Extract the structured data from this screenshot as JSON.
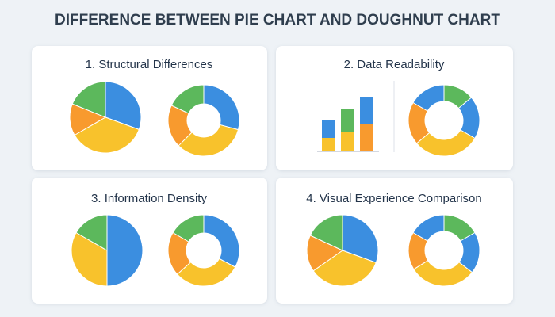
{
  "header": {
    "title": "DIFFERENCE BETWEEN PIE CHART AND DOUGHNUT CHART"
  },
  "panels": [
    {
      "title": "1. Structural Differences"
    },
    {
      "title": "2. Data Readability"
    },
    {
      "title": "3. Information Density"
    },
    {
      "title": "4. Visual Experience Comparison"
    }
  ]
}
